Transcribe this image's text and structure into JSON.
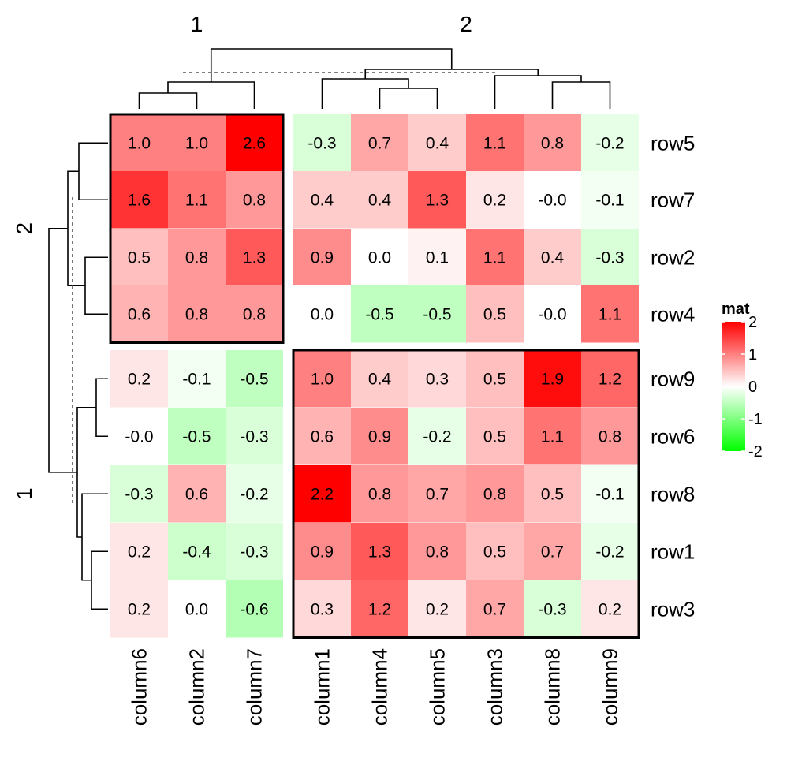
{
  "chart_data": {
    "type": "heatmap",
    "legend": {
      "title": "mat",
      "ticks": [
        2,
        1,
        0,
        -1,
        -2
      ],
      "tick_labels": [
        "2",
        "1",
        "0",
        "-1",
        "-2"
      ],
      "range": [
        -2,
        2
      ],
      "colors": {
        "low": "#00FF00",
        "mid": "#FFFFFF",
        "high": "#FF0000"
      },
      "placement": "right"
    },
    "column_slices": [
      {
        "label": "1",
        "columns": [
          "column6",
          "column2",
          "column7"
        ]
      },
      {
        "label": "2",
        "columns": [
          "column1",
          "column4",
          "column5",
          "column3",
          "column8",
          "column9"
        ]
      }
    ],
    "row_slices": [
      {
        "label": "2",
        "rows": [
          "row5",
          "row7",
          "row2",
          "row4"
        ]
      },
      {
        "label": "1",
        "rows": [
          "row9",
          "row6",
          "row8",
          "row1",
          "row3"
        ]
      }
    ],
    "columns": [
      "column6",
      "column2",
      "column7",
      "column1",
      "column4",
      "column5",
      "column3",
      "column8",
      "column9"
    ],
    "rows": [
      "row5",
      "row7",
      "row2",
      "row4",
      "row9",
      "row6",
      "row8",
      "row1",
      "row3"
    ],
    "values": [
      [
        1.0,
        1.0,
        2.6,
        -0.3,
        0.7,
        0.4,
        1.1,
        0.8,
        -0.2
      ],
      [
        1.6,
        1.1,
        0.8,
        0.4,
        0.4,
        1.3,
        0.2,
        -0.0,
        -0.1
      ],
      [
        0.5,
        0.8,
        1.3,
        0.9,
        0.0,
        0.1,
        1.1,
        0.4,
        -0.3
      ],
      [
        0.6,
        0.8,
        0.8,
        0.0,
        -0.5,
        -0.5,
        0.5,
        -0.0,
        1.1
      ],
      [
        0.2,
        -0.1,
        -0.5,
        1.0,
        0.4,
        0.3,
        0.5,
        1.9,
        1.2
      ],
      [
        -0.0,
        -0.5,
        -0.3,
        0.6,
        0.9,
        -0.2,
        0.5,
        1.1,
        0.8
      ],
      [
        -0.3,
        0.6,
        -0.2,
        2.2,
        0.8,
        0.7,
        0.8,
        0.5,
        -0.1
      ],
      [
        0.2,
        -0.4,
        -0.3,
        0.9,
        1.3,
        0.8,
        0.5,
        0.7,
        -0.2
      ],
      [
        0.2,
        0.0,
        -0.6,
        0.3,
        1.2,
        0.2,
        0.7,
        -0.3,
        0.2
      ]
    ],
    "cell_labels": [
      [
        "1.0",
        "1.0",
        "2.6",
        "-0.3",
        "0.7",
        "0.4",
        "1.1",
        "0.8",
        "-0.2"
      ],
      [
        "1.6",
        "1.1",
        "0.8",
        "0.4",
        "0.4",
        "1.3",
        "0.2",
        "-0.0",
        "-0.1"
      ],
      [
        "0.5",
        "0.8",
        "1.3",
        "0.9",
        "0.0",
        "0.1",
        "1.1",
        "0.4",
        "-0.3"
      ],
      [
        "0.6",
        "0.8",
        "0.8",
        "0.0",
        "-0.5",
        "-0.5",
        "0.5",
        "-0.0",
        "1.1"
      ],
      [
        "0.2",
        "-0.1",
        "-0.5",
        "1.0",
        "0.4",
        "0.3",
        "0.5",
        "1.9",
        "1.2"
      ],
      [
        "-0.0",
        "-0.5",
        "-0.3",
        "0.6",
        "0.9",
        "-0.2",
        "0.5",
        "1.1",
        "0.8"
      ],
      [
        "-0.3",
        "0.6",
        "-0.2",
        "2.2",
        "0.8",
        "0.7",
        "0.8",
        "0.5",
        "-0.1"
      ],
      [
        "0.2",
        "-0.4",
        "-0.3",
        "0.9",
        "1.3",
        "0.8",
        "0.5",
        "0.7",
        "-0.2"
      ],
      [
        "0.2",
        "0.0",
        "-0.6",
        "0.3",
        "1.2",
        "0.2",
        "0.7",
        "-0.3",
        "0.2"
      ]
    ],
    "highlighted_slices": [
      {
        "row_slice": "2",
        "column_slice": "1"
      },
      {
        "row_slice": "1",
        "column_slice": "2"
      }
    ],
    "column_dendrogram": true,
    "row_dendrogram": true
  }
}
